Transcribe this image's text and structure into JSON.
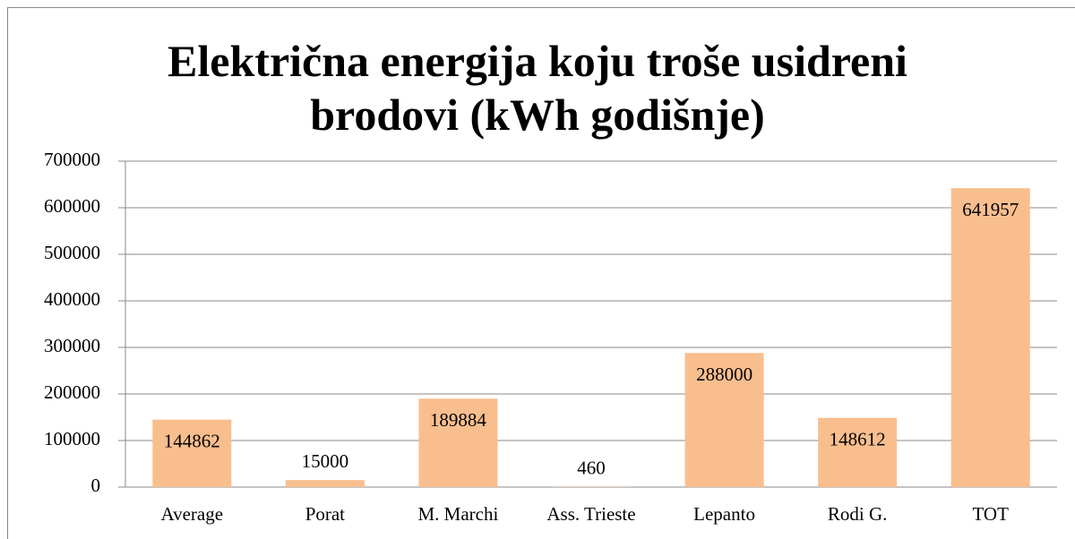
{
  "chart_data": {
    "type": "bar",
    "title": "Električna energija koju troše usidreni brodovi (kWh godišnje)",
    "categories": [
      "Average",
      "Porat",
      "M. Marchi",
      "Ass. Trieste",
      "Lepanto",
      "Rodi G.",
      "TOT"
    ],
    "values": [
      144862,
      15000,
      189884,
      460,
      288000,
      148612,
      641957
    ],
    "color": "#f9be8e",
    "ylim": [
      0,
      700000
    ],
    "yticks": [
      0,
      100000,
      200000,
      300000,
      400000,
      500000,
      600000,
      700000
    ],
    "grid": true
  }
}
